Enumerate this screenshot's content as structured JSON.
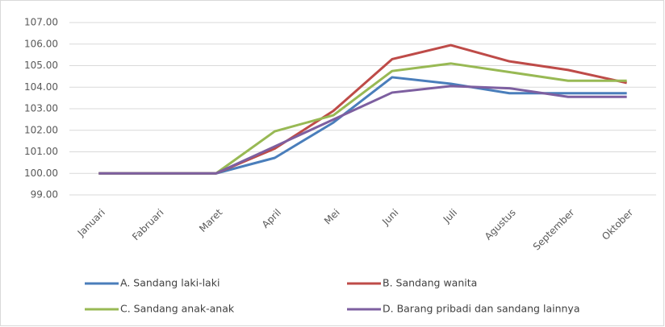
{
  "chart_data": {
    "type": "line",
    "categories": [
      "Januari",
      "Fabruari",
      "Maret",
      "April",
      "Mei",
      "Juni",
      "Juli",
      "Agustus",
      "September",
      "Oktober"
    ],
    "series": [
      {
        "name": "A. Sandang laki-laki",
        "color": "#4a7ebb",
        "values": [
          100,
          100,
          100,
          100.72,
          102.36,
          104.46,
          104.16,
          103.72,
          103.72,
          103.72
        ]
      },
      {
        "name": "B. Sandang wanita",
        "color": "#be4b48",
        "values": [
          100,
          100,
          100,
          101.15,
          102.9,
          105.3,
          105.95,
          105.2,
          104.8,
          104.2
        ]
      },
      {
        "name": "C. Sandang anak-anak",
        "color": "#98b954",
        "values": [
          100,
          100,
          100,
          101.95,
          102.7,
          104.75,
          105.1,
          104.7,
          104.3,
          104.3
        ]
      },
      {
        "name": "D. Barang pribadi dan sandang lainnya",
        "color": "#7d5fa0",
        "values": [
          100,
          100,
          100,
          101.25,
          102.5,
          103.75,
          104.05,
          103.95,
          103.55,
          103.55
        ]
      }
    ],
    "ylim": [
      99,
      107
    ],
    "yticks": [
      {
        "value": 99,
        "label": "99.00"
      },
      {
        "value": 100,
        "label": "100.00"
      },
      {
        "value": 101,
        "label": "101.00"
      },
      {
        "value": 102,
        "label": "102.00"
      },
      {
        "value": 103,
        "label": "103.00"
      },
      {
        "value": 104,
        "label": "104.00"
      },
      {
        "value": 105,
        "label": "105.00"
      },
      {
        "value": 106,
        "label": "106.00"
      },
      {
        "value": 107,
        "label": "107.00"
      }
    ],
    "grid": true,
    "legend": "bottom"
  }
}
